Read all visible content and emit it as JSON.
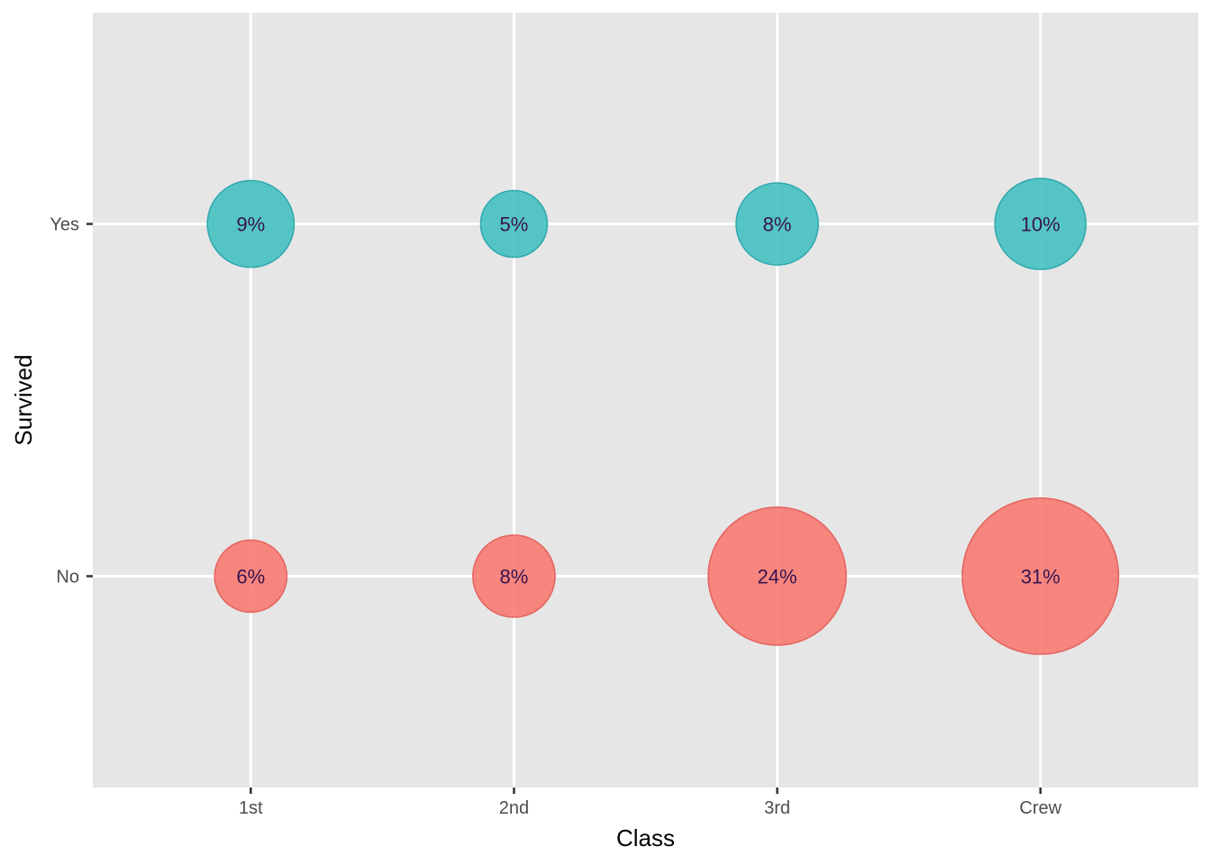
{
  "figure": {
    "background": "#FFFFFF",
    "panel_background": "#E6E6E6",
    "gridline_color": "#FFFFFF",
    "tick_color": "#333333",
    "tick_label_color": "#4D4D4D",
    "axis_title_color": "#000000"
  },
  "chart_data": {
    "type": "scatter",
    "subtype": "balloon-plot",
    "title": "",
    "xlabel": "Class",
    "ylabel": "Survived",
    "x_categories": [
      "1st",
      "2nd",
      "3rd",
      "Crew"
    ],
    "y_categories": [
      "Yes",
      "No"
    ],
    "series": [
      {
        "name": "Yes",
        "fill": "#3FBFC0",
        "stroke": "#2FA8AE",
        "values": [
          9,
          5,
          8,
          10
        ],
        "labels": [
          "9%",
          "5%",
          "8%",
          "10%"
        ]
      },
      {
        "name": "No",
        "fill": "#F8766D",
        "stroke": "#E4635E",
        "values": [
          6,
          8,
          24,
          31
        ],
        "labels": [
          "6%",
          "8%",
          "24%",
          "31%"
        ]
      }
    ],
    "value_unit": "%",
    "size_encoding": "bubble area proportional to percentage of total passengers",
    "bubble_label_color": "#371450",
    "legend": "none",
    "grid": "major white gridlines on grey panel"
  }
}
